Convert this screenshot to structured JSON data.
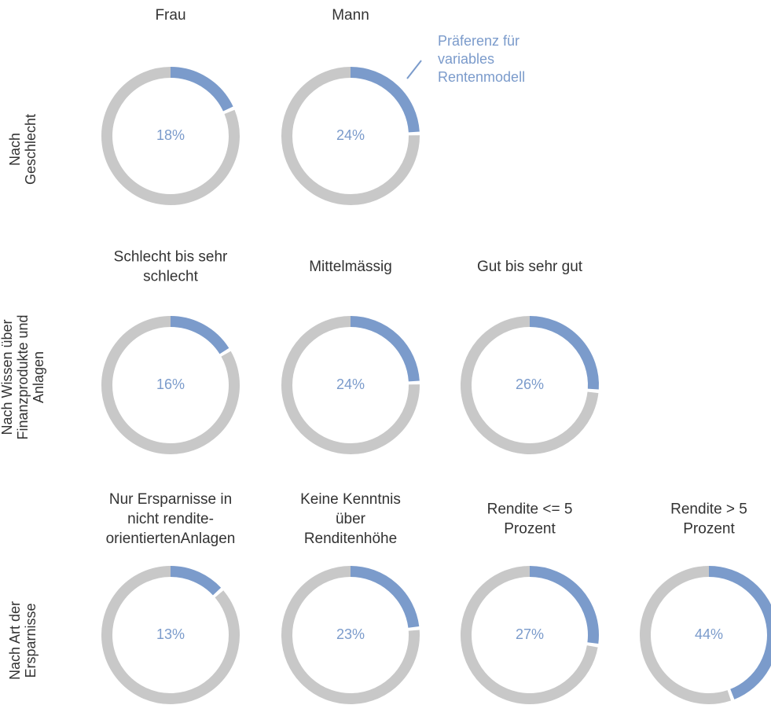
{
  "chart_data": [
    {
      "type": "donut",
      "title": [
        "Nach",
        "Geschlecht"
      ],
      "categories": [
        [
          "Frau"
        ],
        [
          "Mann"
        ]
      ],
      "values": [
        18,
        24
      ],
      "value_labels": [
        "18%",
        "24%"
      ],
      "colors": [
        "#7b9bcb",
        "#c8c8c8"
      ],
      "annotation": [
        "Präferenz für",
        "variables",
        "Rentenmodell"
      ]
    },
    {
      "type": "donut",
      "title": [
        "Nach Wissen über",
        "Finanzprodukte und",
        "Anlagen"
      ],
      "categories": [
        [
          "Schlecht bis sehr",
          "schlecht"
        ],
        [
          "Mittelmässig"
        ],
        [
          "Gut bis sehr gut"
        ]
      ],
      "values": [
        16,
        24,
        26
      ],
      "value_labels": [
        "16%",
        "24%",
        "26%"
      ],
      "colors": [
        "#7b9bcb",
        "#c8c8c8"
      ]
    },
    {
      "type": "donut",
      "title": [
        "Nach Art der",
        "Ersparnisse"
      ],
      "categories": [
        [
          "Nur Ersparnisse in",
          "nicht rendite-",
          "orientiertenAnlagen"
        ],
        [
          "Keine Kenntnis",
          "über",
          "Renditenhöhe"
        ],
        [
          "Rendite <= 5",
          "Prozent"
        ],
        [
          "Rendite > 5",
          "Prozent"
        ]
      ],
      "values": [
        13,
        23,
        27,
        44
      ],
      "value_labels": [
        "13%",
        "23%",
        "27%",
        "44%"
      ],
      "colors": [
        "#7b9bcb",
        "#c8c8c8"
      ]
    }
  ]
}
